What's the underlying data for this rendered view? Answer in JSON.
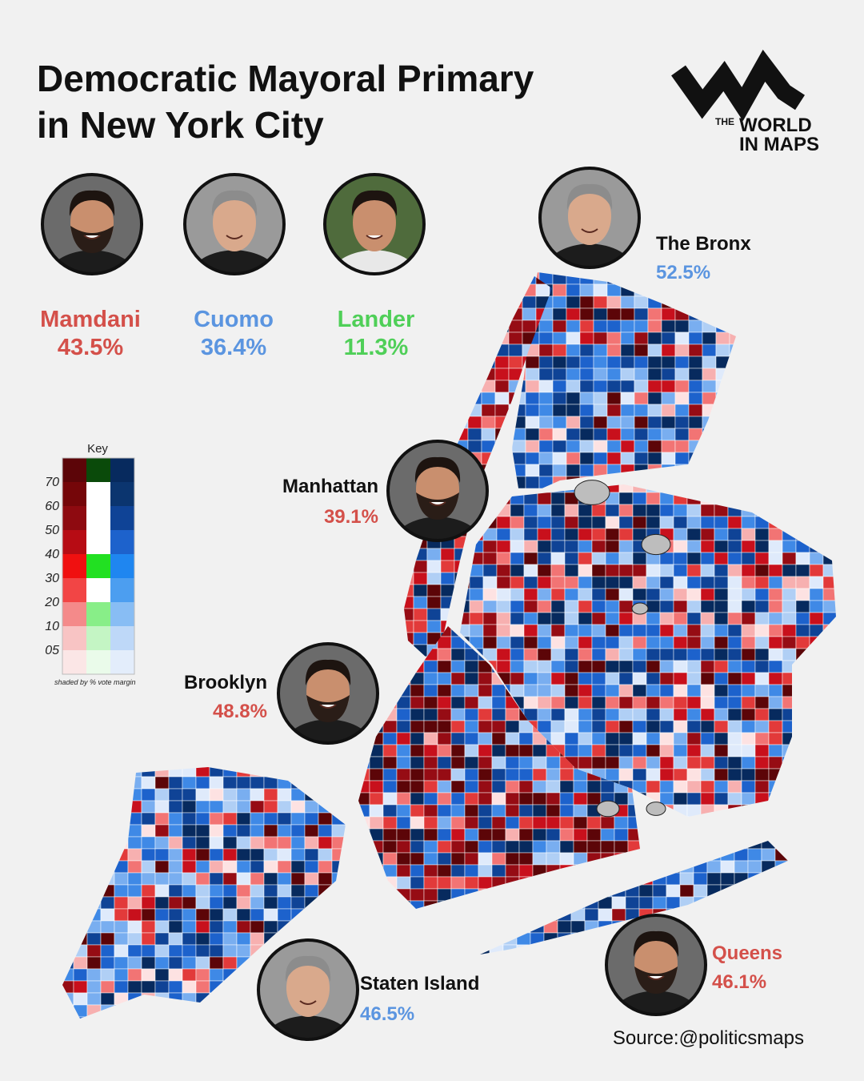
{
  "header": {
    "title": [
      "Democratic Mayoral Primary",
      "in New York City"
    ]
  },
  "logo": {
    "lines": [
      "THE",
      "WORLD",
      "IN MAPS"
    ]
  },
  "candidates": [
    {
      "name": "Mamdani",
      "share": "43.5%"
    },
    {
      "name": "Cuomo",
      "share": "36.4%"
    },
    {
      "name": "Lander",
      "share": "11.3%"
    }
  ],
  "key": {
    "title": "Key",
    "levels": [
      "70",
      "60",
      "50",
      "40",
      "30",
      "20",
      "10",
      "05"
    ],
    "note": "shaded by % vote margin"
  },
  "boroughs": [
    {
      "name": "The Bronx",
      "share": "52.5%"
    },
    {
      "name": "Manhattan",
      "share": "39.1%"
    },
    {
      "name": "Brooklyn",
      "share": "48.8%"
    },
    {
      "name": "Staten Island",
      "share": "46.5%"
    },
    {
      "name": "Queens",
      "share": "46.1%"
    }
  ],
  "source": "Source:@politicsmaps"
}
